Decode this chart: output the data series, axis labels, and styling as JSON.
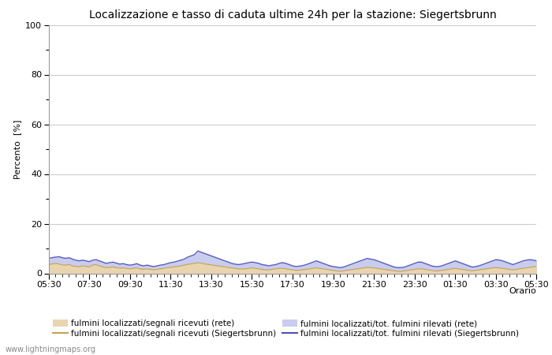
{
  "title": "Localizzazione e tasso di caduta ultime 24h per la stazione: Siegertsbrunn",
  "ylabel": "Percento  [%]",
  "xlabel": "Orario",
  "ylim": [
    0,
    100
  ],
  "yticks": [
    0,
    20,
    40,
    60,
    80,
    100
  ],
  "yticks_minor": [
    10,
    30,
    50,
    70,
    90
  ],
  "x_labels": [
    "05:30",
    "07:30",
    "09:30",
    "11:30",
    "13:30",
    "15:30",
    "17:30",
    "19:30",
    "21:30",
    "23:30",
    "01:30",
    "03:30",
    "05:30"
  ],
  "background_color": "#ffffff",
  "plot_bg_color": "#ffffff",
  "grid_color": "#cccccc",
  "fill_rete_segnali_color": "#e8d5b0",
  "fill_rete_segnali_alpha": 1.0,
  "fill_rete_tot_color": "#c8ccee",
  "fill_rete_tot_alpha": 1.0,
  "line_siegertsbrunn_segnali_color": "#c8a050",
  "line_siegertsbrunn_tot_color": "#5050b0",
  "watermark": "www.lightningmaps.org",
  "n_points": 145,
  "rete_segnali": [
    3.5,
    3.8,
    4.2,
    4.0,
    3.6,
    3.5,
    3.8,
    3.2,
    3.0,
    2.8,
    3.2,
    3.0,
    2.8,
    3.5,
    3.8,
    3.2,
    2.8,
    2.5,
    2.6,
    2.8,
    2.5,
    2.3,
    2.4,
    2.2,
    2.0,
    2.2,
    2.4,
    2.0,
    1.8,
    2.0,
    1.8,
    1.6,
    1.8,
    2.0,
    2.2,
    2.4,
    2.6,
    2.8,
    3.0,
    3.2,
    3.5,
    3.8,
    4.0,
    4.2,
    4.5,
    4.3,
    4.0,
    3.8,
    3.6,
    3.4,
    3.2,
    3.0,
    2.8,
    2.6,
    2.4,
    2.2,
    2.0,
    2.0,
    2.0,
    2.2,
    2.4,
    2.2,
    2.0,
    1.8,
    1.6,
    1.6,
    1.8,
    2.0,
    2.2,
    2.2,
    2.0,
    1.8,
    1.6,
    1.4,
    1.5,
    1.6,
    1.8,
    2.0,
    2.2,
    2.4,
    2.2,
    2.0,
    1.8,
    1.6,
    1.4,
    1.2,
    1.0,
    1.2,
    1.4,
    1.6,
    1.8,
    2.0,
    2.2,
    2.4,
    2.6,
    2.5,
    2.4,
    2.2,
    2.0,
    1.8,
    1.6,
    1.4,
    1.2,
    1.0,
    1.0,
    1.2,
    1.4,
    1.6,
    1.8,
    2.0,
    2.0,
    1.8,
    1.6,
    1.4,
    1.2,
    1.2,
    1.4,
    1.6,
    1.8,
    2.0,
    2.2,
    2.0,
    1.8,
    1.6,
    1.4,
    1.2,
    1.4,
    1.6,
    1.8,
    2.0,
    2.2,
    2.4,
    2.5,
    2.4,
    2.2,
    2.0,
    1.8,
    1.6,
    1.8,
    2.0,
    2.2,
    2.4,
    2.6,
    2.8,
    3.0
  ],
  "rete_tot": [
    6.5,
    6.8,
    7.0,
    7.2,
    6.8,
    6.5,
    6.8,
    6.2,
    5.8,
    5.5,
    5.8,
    5.5,
    5.2,
    5.8,
    6.0,
    5.5,
    5.0,
    4.5,
    4.8,
    5.0,
    4.6,
    4.2,
    4.4,
    4.0,
    3.8,
    4.0,
    4.4,
    3.8,
    3.5,
    3.8,
    3.5,
    3.2,
    3.5,
    3.8,
    4.0,
    4.4,
    4.8,
    5.0,
    5.4,
    5.8,
    6.2,
    7.0,
    7.5,
    8.0,
    9.5,
    9.0,
    8.5,
    8.0,
    7.5,
    7.0,
    6.5,
    6.0,
    5.5,
    5.0,
    4.5,
    4.2,
    4.0,
    4.2,
    4.5,
    4.8,
    5.0,
    4.8,
    4.5,
    4.0,
    3.8,
    3.5,
    3.8,
    4.0,
    4.5,
    4.8,
    4.5,
    4.0,
    3.5,
    3.2,
    3.4,
    3.6,
    4.0,
    4.5,
    5.0,
    5.5,
    5.0,
    4.5,
    4.0,
    3.5,
    3.2,
    3.0,
    2.8,
    3.0,
    3.5,
    4.0,
    4.5,
    5.0,
    5.5,
    6.0,
    6.5,
    6.2,
    6.0,
    5.5,
    5.0,
    4.5,
    4.0,
    3.5,
    3.0,
    2.8,
    2.8,
    3.0,
    3.5,
    4.0,
    4.5,
    5.0,
    5.0,
    4.5,
    4.0,
    3.5,
    3.2,
    3.2,
    3.5,
    4.0,
    4.5,
    5.0,
    5.5,
    5.0,
    4.5,
    4.0,
    3.5,
    3.0,
    3.2,
    3.5,
    4.0,
    4.5,
    5.0,
    5.5,
    6.0,
    5.8,
    5.5,
    5.0,
    4.5,
    4.0,
    4.5,
    5.0,
    5.5,
    5.8,
    6.0,
    5.8,
    5.5
  ],
  "siegertsbrunn_segnali": [
    3.5,
    3.8,
    4.0,
    3.8,
    3.4,
    3.3,
    3.6,
    3.0,
    2.8,
    2.6,
    3.0,
    2.8,
    2.6,
    3.3,
    3.5,
    3.0,
    2.6,
    2.3,
    2.4,
    2.6,
    2.3,
    2.1,
    2.2,
    2.0,
    1.8,
    2.0,
    2.2,
    1.8,
    1.6,
    1.8,
    1.6,
    1.4,
    1.6,
    1.8,
    2.0,
    2.2,
    2.4,
    2.6,
    2.8,
    3.0,
    3.3,
    3.6,
    3.8,
    4.0,
    4.3,
    4.1,
    3.8,
    3.6,
    3.4,
    3.2,
    3.0,
    2.8,
    2.6,
    2.4,
    2.2,
    2.0,
    1.8,
    1.8,
    1.8,
    2.0,
    2.2,
    2.0,
    1.8,
    1.6,
    1.4,
    1.4,
    1.6,
    1.8,
    2.0,
    2.0,
    1.8,
    1.6,
    1.4,
    1.2,
    1.3,
    1.4,
    1.6,
    1.8,
    2.0,
    2.2,
    2.0,
    1.8,
    1.6,
    1.4,
    1.2,
    1.0,
    0.8,
    1.0,
    1.2,
    1.4,
    1.6,
    1.8,
    2.0,
    2.2,
    2.4,
    2.3,
    2.2,
    2.0,
    1.8,
    1.6,
    1.4,
    1.2,
    1.0,
    0.8,
    0.8,
    1.0,
    1.2,
    1.4,
    1.6,
    1.8,
    1.8,
    1.6,
    1.4,
    1.2,
    1.0,
    1.0,
    1.2,
    1.4,
    1.6,
    1.8,
    2.0,
    1.8,
    1.6,
    1.4,
    1.2,
    1.0,
    1.2,
    1.4,
    1.6,
    1.8,
    2.0,
    2.2,
    2.3,
    2.2,
    2.0,
    1.8,
    1.6,
    1.4,
    1.6,
    1.8,
    2.0,
    2.2,
    2.4,
    2.6,
    2.8
  ],
  "siegertsbrunn_tot": [
    6.0,
    6.3,
    6.5,
    6.7,
    6.3,
    6.0,
    6.3,
    5.7,
    5.3,
    5.0,
    5.3,
    5.0,
    4.7,
    5.3,
    5.5,
    5.0,
    4.5,
    4.0,
    4.3,
    4.5,
    4.1,
    3.7,
    3.9,
    3.5,
    3.3,
    3.5,
    3.9,
    3.3,
    3.0,
    3.3,
    3.0,
    2.7,
    3.0,
    3.3,
    3.5,
    3.9,
    4.3,
    4.5,
    4.9,
    5.3,
    5.7,
    6.5,
    7.0,
    7.5,
    9.0,
    8.5,
    8.0,
    7.5,
    7.0,
    6.5,
    6.0,
    5.5,
    5.0,
    4.5,
    4.0,
    3.7,
    3.5,
    3.7,
    4.0,
    4.3,
    4.5,
    4.3,
    4.0,
    3.5,
    3.3,
    3.0,
    3.3,
    3.5,
    4.0,
    4.3,
    4.0,
    3.5,
    3.0,
    2.7,
    2.9,
    3.1,
    3.5,
    4.0,
    4.5,
    5.0,
    4.5,
    4.0,
    3.5,
    3.0,
    2.7,
    2.5,
    2.3,
    2.5,
    3.0,
    3.5,
    4.0,
    4.5,
    5.0,
    5.5,
    6.0,
    5.7,
    5.5,
    5.0,
    4.5,
    4.0,
    3.5,
    3.0,
    2.5,
    2.3,
    2.3,
    2.5,
    3.0,
    3.5,
    4.0,
    4.5,
    4.5,
    4.0,
    3.5,
    3.0,
    2.7,
    2.7,
    3.0,
    3.5,
    4.0,
    4.5,
    5.0,
    4.5,
    4.0,
    3.5,
    3.0,
    2.5,
    2.7,
    3.0,
    3.5,
    4.0,
    4.5,
    5.0,
    5.5,
    5.3,
    5.0,
    4.5,
    4.0,
    3.5,
    4.0,
    4.5,
    5.0,
    5.3,
    5.5,
    5.3,
    5.0
  ],
  "legend_labels": [
    "fulmini localizzati/segnali ricevuti (rete)",
    "fulmini localizzati/segnali ricevuti (Siegertsbrunn)",
    "fulmini localizzati/tot. fulmini rilevati (rete)",
    "fulmini localizzati/tot. fulmini rilevati (Siegertsbrunn)"
  ]
}
